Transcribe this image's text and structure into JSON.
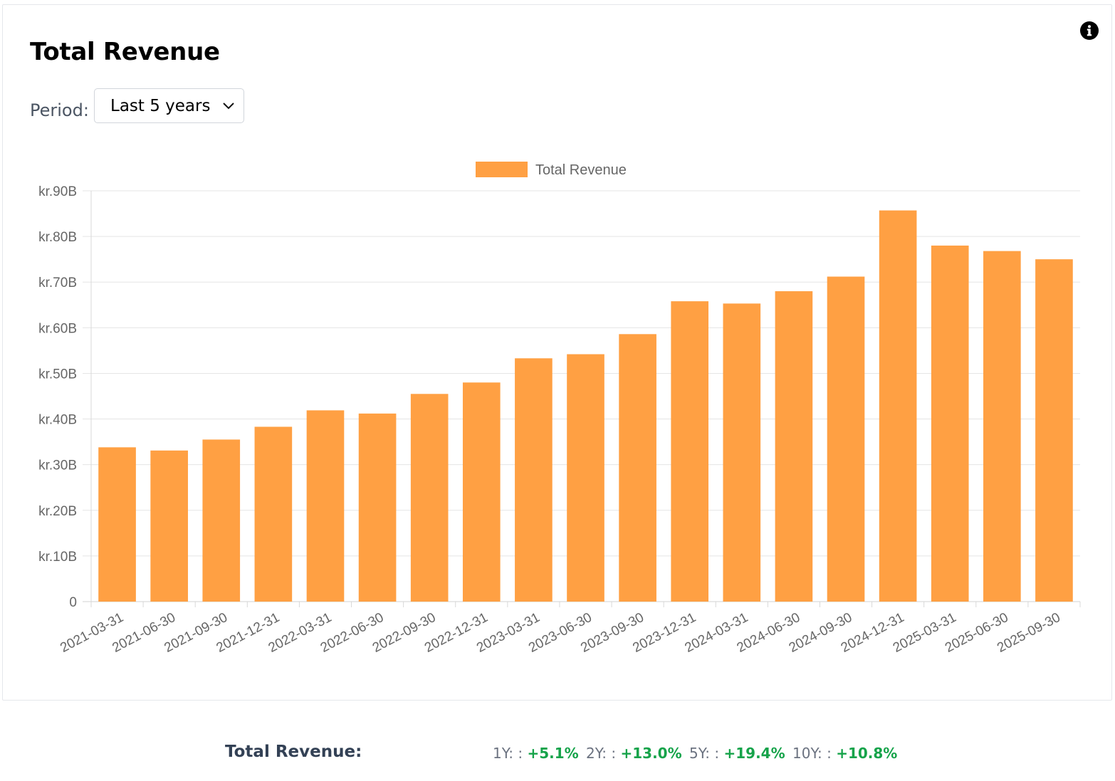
{
  "header": {
    "title": "Total Revenue"
  },
  "period": {
    "label": "Period:",
    "selected": "Last 5 years"
  },
  "icons": {
    "info": "info-circle-icon",
    "dropdown": "chevron-down-icon"
  },
  "colors": {
    "bar": "#ffa043",
    "grid": "#e5e5e5",
    "growth_positive": "#16a34a"
  },
  "chart_data": {
    "type": "bar",
    "title": "Total Revenue",
    "legend": [
      "Total Revenue"
    ],
    "legend_position": "top-center",
    "xlabel": "",
    "ylabel": "",
    "grid": true,
    "ylim": [
      0,
      90
    ],
    "y_ticks": [
      {
        "value": 0,
        "label": "0"
      },
      {
        "value": 10,
        "label": "kr.10B"
      },
      {
        "value": 20,
        "label": "kr.20B"
      },
      {
        "value": 30,
        "label": "kr.30B"
      },
      {
        "value": 40,
        "label": "kr.40B"
      },
      {
        "value": 50,
        "label": "kr.50B"
      },
      {
        "value": 60,
        "label": "kr.60B"
      },
      {
        "value": 70,
        "label": "kr.70B"
      },
      {
        "value": 80,
        "label": "kr.80B"
      },
      {
        "value": 90,
        "label": "kr.90B"
      }
    ],
    "categories": [
      "2021-03-31",
      "2021-06-30",
      "2021-09-30",
      "2021-12-31",
      "2022-03-31",
      "2022-06-30",
      "2022-09-30",
      "2022-12-31",
      "2023-03-31",
      "2023-06-30",
      "2023-09-30",
      "2023-12-31",
      "2024-03-31",
      "2024-06-30",
      "2024-09-30",
      "2024-12-31",
      "2025-03-31",
      "2025-06-30",
      "2025-09-30"
    ],
    "series": [
      {
        "name": "Total Revenue",
        "unit": "kr. billions",
        "values": [
          33.8,
          33.1,
          35.5,
          38.3,
          41.9,
          41.2,
          45.5,
          48.0,
          53.3,
          54.2,
          58.6,
          65.8,
          65.3,
          68.0,
          71.2,
          85.7,
          78.0,
          76.8,
          75.0
        ]
      }
    ]
  },
  "summary": {
    "label": "Total Revenue:",
    "growth": [
      {
        "period": "1Y: :",
        "value": "+5.1%"
      },
      {
        "period": "2Y: :",
        "value": "+13.0%"
      },
      {
        "period": "5Y: :",
        "value": "+19.4%"
      },
      {
        "period": "10Y: :",
        "value": "+10.8%"
      }
    ]
  }
}
